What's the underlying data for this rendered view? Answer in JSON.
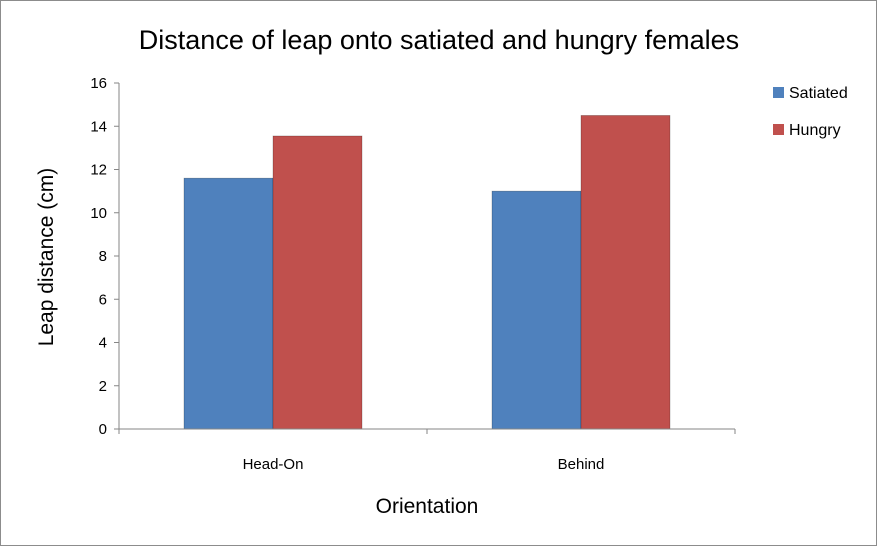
{
  "chart_data": {
    "type": "bar",
    "title": "Distance of leap onto satiated and hungry females",
    "xlabel": "Orientation",
    "ylabel": "Leap distance (cm)",
    "categories": [
      "Head-On",
      "Behind"
    ],
    "series": [
      {
        "name": "Satiated",
        "values": [
          11.6,
          11.0
        ],
        "color": "#4F81BD"
      },
      {
        "name": "Hungry",
        "values": [
          13.55,
          14.5
        ],
        "color": "#C0504D"
      }
    ],
    "ylim": [
      0,
      16
    ],
    "yticks": [
      0,
      2,
      4,
      6,
      8,
      10,
      12,
      14,
      16
    ],
    "ytick_labels": [
      "0",
      "2",
      "4",
      "6",
      "8",
      "10",
      "12",
      "14",
      "16"
    ],
    "grid": false,
    "legend_position": "right"
  }
}
